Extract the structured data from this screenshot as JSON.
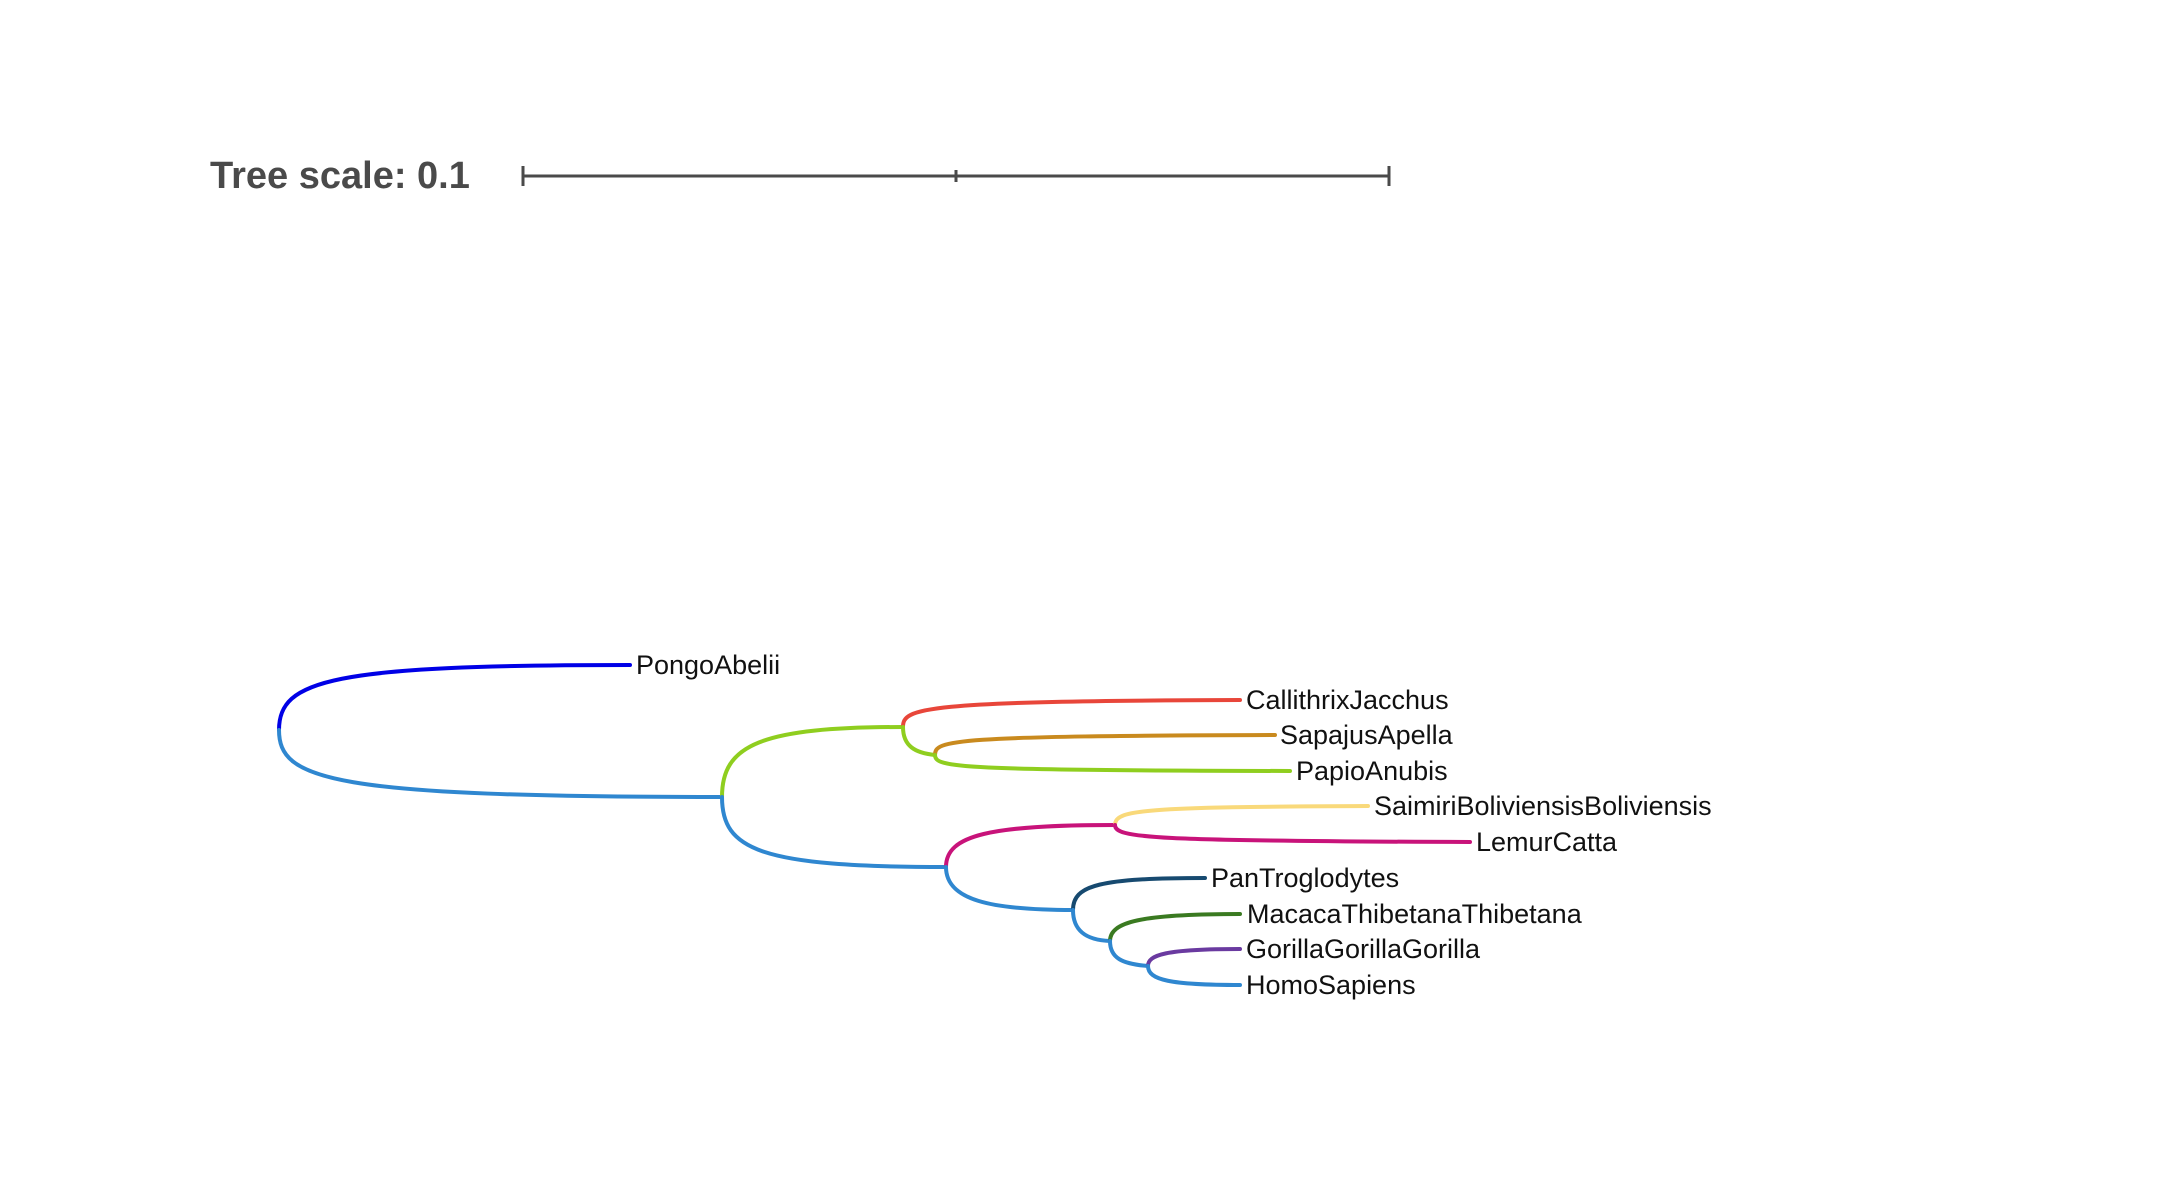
{
  "scale": {
    "label": "Tree scale: 0.1",
    "bar_color": "#4a4a4a"
  },
  "leaves": [
    {
      "id": "pongo",
      "label": "PongoAbelii",
      "color": "#0000e6"
    },
    {
      "id": "callithrix",
      "label": "CallithrixJacchus",
      "color": "#e8463a"
    },
    {
      "id": "sapajus",
      "label": "SapajusApella",
      "color": "#c98a1e"
    },
    {
      "id": "papio",
      "label": "PapioAnubis",
      "color": "#8fce1f"
    },
    {
      "id": "saimiri",
      "label": "SaimiriBoliviensisBoliviensis",
      "color": "#f9d97a"
    },
    {
      "id": "lemur",
      "label": "LemurCatta",
      "color": "#c8137a"
    },
    {
      "id": "pan",
      "label": "PanTroglodytes",
      "color": "#174a70"
    },
    {
      "id": "macaca",
      "label": "MacacaThibetanaThibetana",
      "color": "#3a7a21"
    },
    {
      "id": "gorilla",
      "label": "GorillaGorillaGorilla",
      "color": "#6a3aa0"
    },
    {
      "id": "homo",
      "label": "HomoSapiens",
      "color": "#2f87d0"
    }
  ],
  "clade_colors": {
    "root_to_pongo": "#0000e6",
    "root_to_rest": "#2f87d0",
    "group_a": "#8fce1f",
    "group_b": "#2f87d0",
    "saimiri_lemur": "#c8137a",
    "homininae": "#2f87d0",
    "macaca_group": "#3a7a21",
    "gorilla_homo": "#6a3aa0"
  }
}
